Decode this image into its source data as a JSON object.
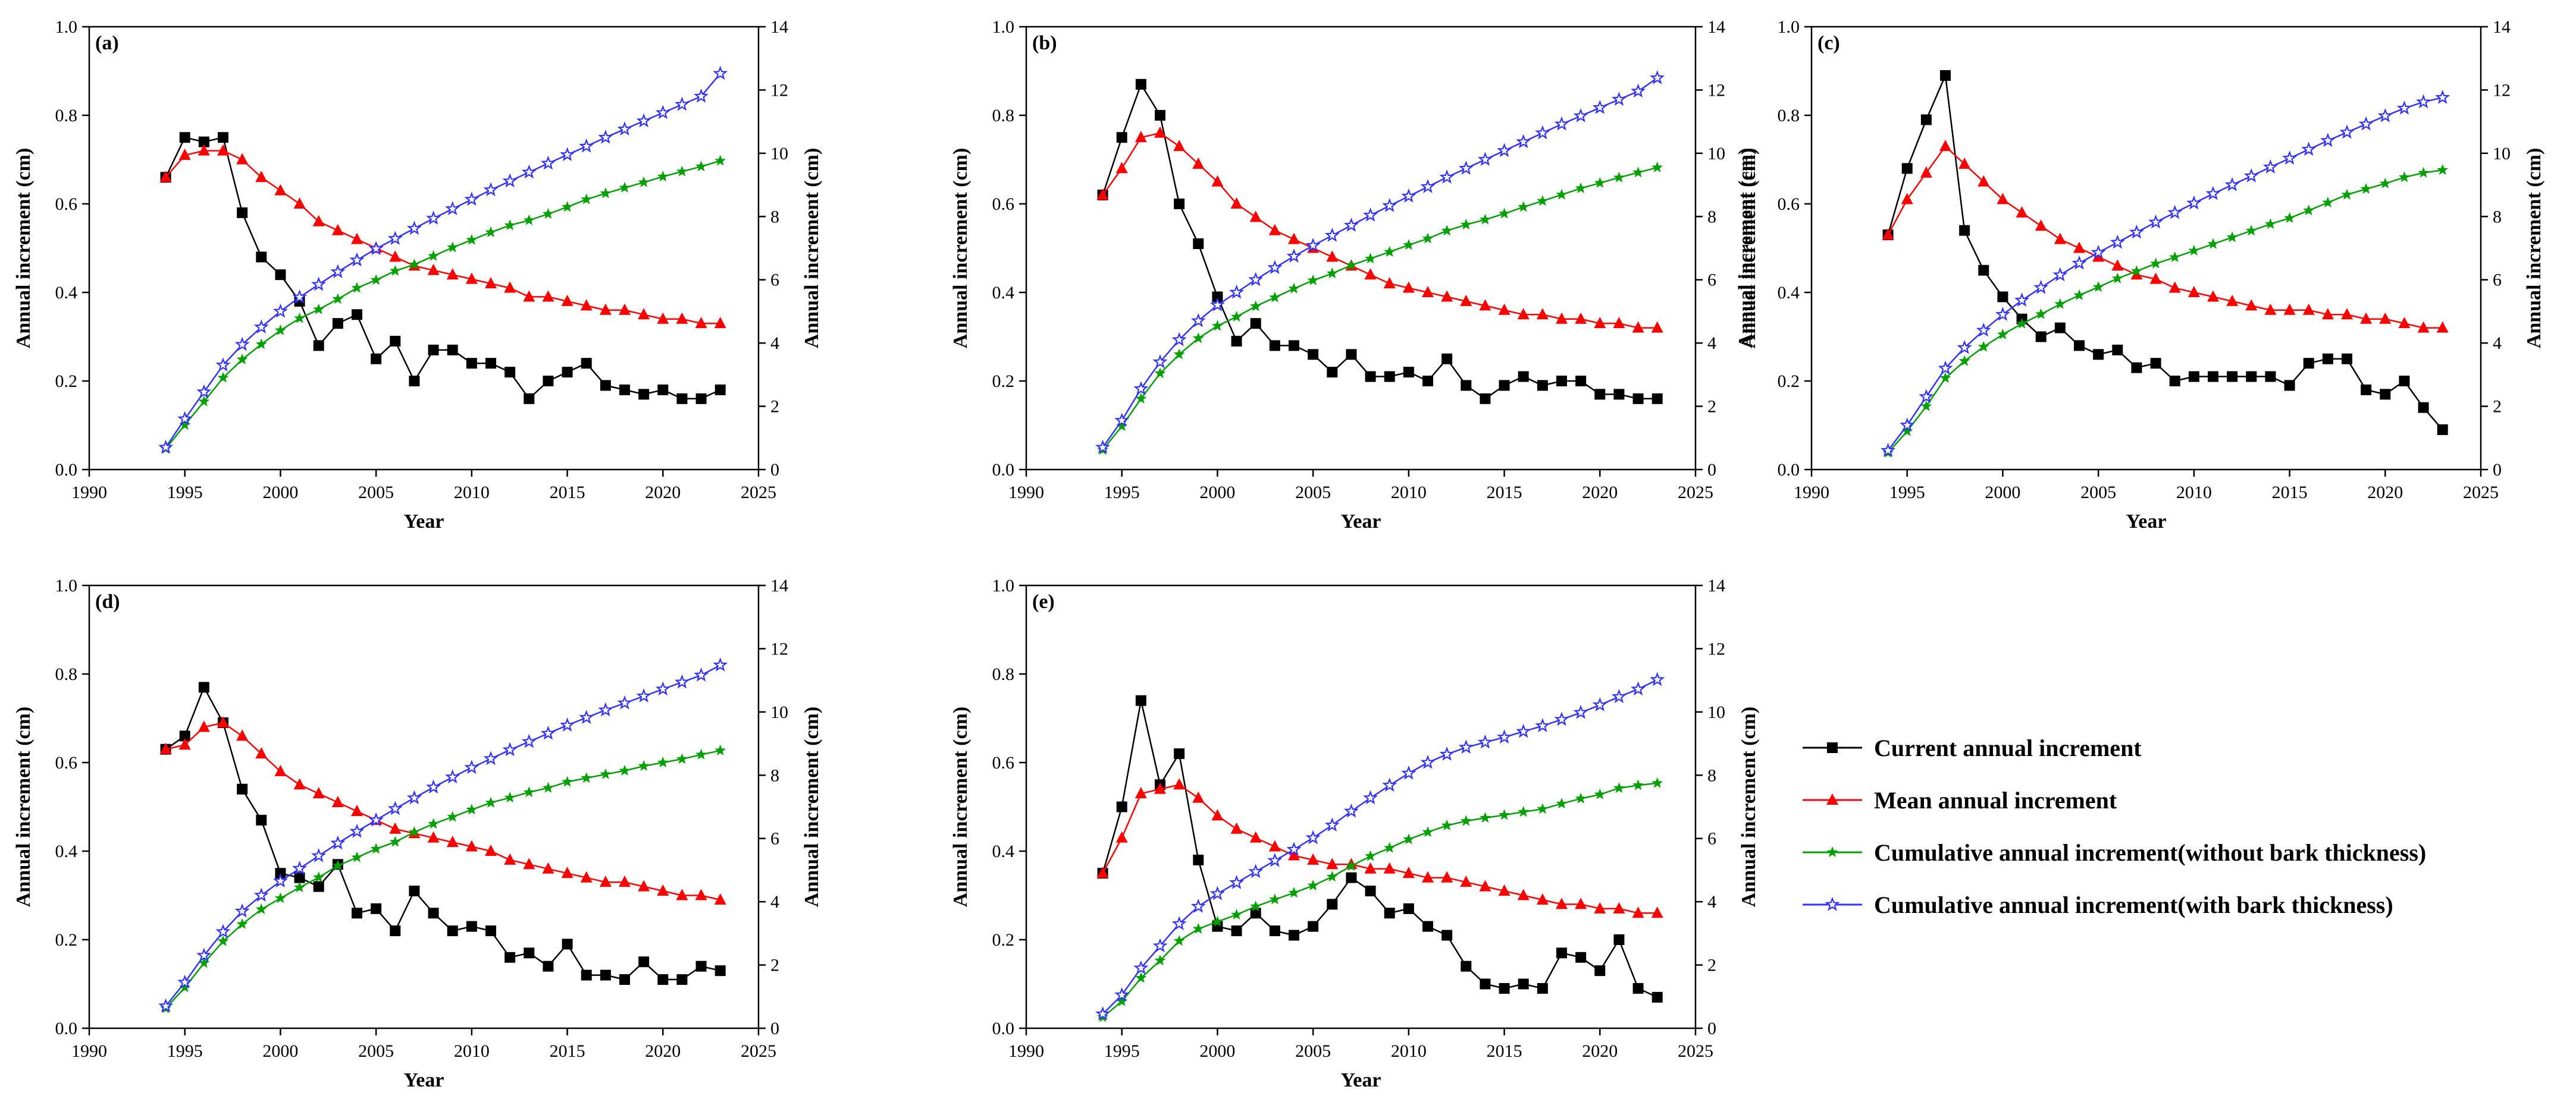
{
  "figure": {
    "legend": [
      {
        "name": "Current annual increment",
        "color": "#000000",
        "marker": "square",
        "axis": "left"
      },
      {
        "name": "Mean annual increment",
        "color": "#ff0000",
        "marker": "triangle",
        "axis": "left"
      },
      {
        "name": "Cumulative annual increment(without bark thickness)",
        "color": "#00a000",
        "marker": "star",
        "axis": "right"
      },
      {
        "name": "Cumulative annual increment(with bark thickness)",
        "color": "#3333ff",
        "marker": "star-open",
        "axis": "right"
      }
    ]
  },
  "chart_data": [
    {
      "type": "line",
      "label": "(a)",
      "xlabel": "Year",
      "ylabel": "Annual increment (cm)",
      "y2label": "Annual increment (cm)",
      "xlim": [
        1990,
        2025
      ],
      "ylim": [
        0,
        1.0
      ],
      "y2lim": [
        0,
        14
      ],
      "xticks": [
        1990,
        1995,
        2000,
        2005,
        2010,
        2015,
        2020,
        2025
      ],
      "yticks": [
        0.0,
        0.2,
        0.4,
        0.6,
        0.8,
        1.0
      ],
      "y2ticks": [
        0,
        2,
        4,
        6,
        8,
        10,
        12,
        14
      ],
      "x": [
        1994,
        1995,
        1996,
        1997,
        1998,
        1999,
        2000,
        2001,
        2002,
        2003,
        2004,
        2005,
        2006,
        2007,
        2008,
        2009,
        2010,
        2011,
        2012,
        2013,
        2014,
        2015,
        2016,
        2017,
        2018,
        2019,
        2020,
        2021,
        2022,
        2023
      ],
      "series": [
        {
          "name": "Current annual increment",
          "axis": "left",
          "values": [
            0.66,
            0.75,
            0.74,
            0.75,
            0.58,
            0.48,
            0.44,
            0.38,
            0.28,
            0.33,
            0.35,
            0.25,
            0.29,
            0.2,
            0.27,
            0.27,
            0.24,
            0.24,
            0.22,
            0.16,
            0.2,
            0.22,
            0.24,
            0.19,
            0.18,
            0.17,
            0.18,
            0.16,
            0.16,
            0.18
          ]
        },
        {
          "name": "Mean annual increment",
          "axis": "left",
          "values": [
            0.66,
            0.71,
            0.72,
            0.72,
            0.7,
            0.66,
            0.63,
            0.6,
            0.56,
            0.54,
            0.52,
            0.5,
            0.48,
            0.46,
            0.45,
            0.44,
            0.43,
            0.42,
            0.41,
            0.39,
            0.39,
            0.38,
            0.37,
            0.36,
            0.36,
            0.35,
            0.34,
            0.34,
            0.33,
            0.33
          ]
        },
        {
          "name": "Cumulative annual increment(without bark thickness)",
          "axis": "right",
          "values": [
            0.66,
            1.41,
            2.15,
            2.9,
            3.48,
            3.96,
            4.4,
            4.78,
            5.06,
            5.39,
            5.74,
            5.99,
            6.28,
            6.48,
            6.75,
            7.02,
            7.26,
            7.5,
            7.72,
            7.88,
            8.08,
            8.3,
            8.54,
            8.73,
            8.91,
            9.08,
            9.26,
            9.42,
            9.58,
            9.76
          ]
        },
        {
          "name": "Cumulative annual increment(with bark thickness)",
          "axis": "right",
          "values": [
            0.7,
            1.6,
            2.45,
            3.3,
            3.95,
            4.5,
            5.0,
            5.45,
            5.85,
            6.25,
            6.62,
            6.98,
            7.3,
            7.62,
            7.94,
            8.24,
            8.54,
            8.84,
            9.12,
            9.4,
            9.68,
            9.95,
            10.22,
            10.5,
            10.76,
            11.02,
            11.28,
            11.54,
            11.8,
            12.52
          ]
        }
      ]
    },
    {
      "type": "line",
      "label": "(b)",
      "xlabel": "Year",
      "ylabel": "Annual increment (cm)",
      "y2label": "Annual increment (cm)",
      "xlim": [
        1990,
        2025
      ],
      "ylim": [
        0,
        1.0
      ],
      "y2lim": [
        0,
        14
      ],
      "xticks": [
        1990,
        1995,
        2000,
        2005,
        2010,
        2015,
        2020,
        2025
      ],
      "yticks": [
        0.0,
        0.2,
        0.4,
        0.6,
        0.8,
        1.0
      ],
      "y2ticks": [
        0,
        2,
        4,
        6,
        8,
        10,
        12,
        14
      ],
      "x": [
        1994,
        1995,
        1996,
        1997,
        1998,
        1999,
        2000,
        2001,
        2002,
        2003,
        2004,
        2005,
        2006,
        2007,
        2008,
        2009,
        2010,
        2011,
        2012,
        2013,
        2014,
        2015,
        2016,
        2017,
        2018,
        2019,
        2020,
        2021,
        2022,
        2023
      ],
      "series": [
        {
          "name": "Current annual increment",
          "axis": "left",
          "values": [
            0.62,
            0.75,
            0.87,
            0.8,
            0.6,
            0.51,
            0.39,
            0.29,
            0.33,
            0.28,
            0.28,
            0.26,
            0.22,
            0.26,
            0.21,
            0.21,
            0.22,
            0.2,
            0.25,
            0.19,
            0.16,
            0.19,
            0.21,
            0.19,
            0.2,
            0.2,
            0.17,
            0.17,
            0.16,
            0.16
          ]
        },
        {
          "name": "Mean annual increment",
          "axis": "left",
          "values": [
            0.62,
            0.68,
            0.75,
            0.76,
            0.73,
            0.69,
            0.65,
            0.6,
            0.57,
            0.54,
            0.52,
            0.5,
            0.48,
            0.46,
            0.44,
            0.42,
            0.41,
            0.4,
            0.39,
            0.38,
            0.37,
            0.36,
            0.35,
            0.35,
            0.34,
            0.34,
            0.33,
            0.33,
            0.32,
            0.32
          ]
        },
        {
          "name": "Cumulative annual increment(without bark thickness)",
          "axis": "right",
          "values": [
            0.62,
            1.37,
            2.24,
            3.04,
            3.64,
            4.15,
            4.54,
            4.83,
            5.16,
            5.44,
            5.72,
            5.98,
            6.2,
            6.46,
            6.67,
            6.88,
            7.1,
            7.3,
            7.55,
            7.74,
            7.9,
            8.09,
            8.3,
            8.49,
            8.69,
            8.89,
            9.06,
            9.23,
            9.39,
            9.55
          ]
        },
        {
          "name": "Cumulative annual increment(with bark thickness)",
          "axis": "right",
          "values": [
            0.7,
            1.55,
            2.55,
            3.4,
            4.1,
            4.7,
            5.2,
            5.6,
            6.0,
            6.38,
            6.74,
            7.08,
            7.4,
            7.72,
            8.04,
            8.34,
            8.64,
            8.94,
            9.24,
            9.52,
            9.8,
            10.08,
            10.36,
            10.64,
            10.92,
            11.18,
            11.44,
            11.7,
            11.96,
            12.38
          ]
        }
      ]
    },
    {
      "type": "line",
      "label": "(c)",
      "xlabel": "Year",
      "ylabel": "Annual increment (cm)",
      "y2label": "Annual increment (cm)",
      "xlim": [
        1990,
        2025
      ],
      "ylim": [
        0,
        1.0
      ],
      "y2lim": [
        0,
        14
      ],
      "xticks": [
        1990,
        1995,
        2000,
        2005,
        2010,
        2015,
        2020,
        2025
      ],
      "yticks": [
        0.0,
        0.2,
        0.4,
        0.6,
        0.8,
        1.0
      ],
      "y2ticks": [
        0,
        2,
        4,
        6,
        8,
        10,
        12,
        14
      ],
      "x": [
        1994,
        1995,
        1996,
        1997,
        1998,
        1999,
        2000,
        2001,
        2002,
        2003,
        2004,
        2005,
        2006,
        2007,
        2008,
        2009,
        2010,
        2011,
        2012,
        2013,
        2014,
        2015,
        2016,
        2017,
        2018,
        2019,
        2020,
        2021,
        2022,
        2023
      ],
      "series": [
        {
          "name": "Current annual increment",
          "axis": "left",
          "values": [
            0.53,
            0.68,
            0.79,
            0.89,
            0.54,
            0.45,
            0.39,
            0.34,
            0.3,
            0.32,
            0.28,
            0.26,
            0.27,
            0.23,
            0.24,
            0.2,
            0.21,
            0.21,
            0.21,
            0.21,
            0.21,
            0.19,
            0.24,
            0.25,
            0.25,
            0.18,
            0.17,
            0.2,
            0.14,
            0.09
          ]
        },
        {
          "name": "Mean annual increment",
          "axis": "left",
          "values": [
            0.53,
            0.61,
            0.67,
            0.73,
            0.69,
            0.65,
            0.61,
            0.58,
            0.55,
            0.52,
            0.5,
            0.48,
            0.46,
            0.44,
            0.43,
            0.41,
            0.4,
            0.39,
            0.38,
            0.37,
            0.36,
            0.36,
            0.36,
            0.35,
            0.35,
            0.34,
            0.34,
            0.33,
            0.32,
            0.32
          ]
        },
        {
          "name": "Cumulative annual increment(without bark thickness)",
          "axis": "right",
          "values": [
            0.53,
            1.21,
            2.0,
            2.89,
            3.43,
            3.88,
            4.27,
            4.61,
            4.91,
            5.23,
            5.51,
            5.77,
            6.04,
            6.27,
            6.51,
            6.71,
            6.92,
            7.13,
            7.34,
            7.55,
            7.76,
            7.95,
            8.19,
            8.44,
            8.69,
            8.87,
            9.04,
            9.24,
            9.38,
            9.47
          ]
        },
        {
          "name": "Cumulative annual increment(with bark thickness)",
          "axis": "right",
          "values": [
            0.6,
            1.4,
            2.3,
            3.2,
            3.85,
            4.4,
            4.9,
            5.35,
            5.75,
            6.15,
            6.52,
            6.86,
            7.18,
            7.5,
            7.82,
            8.12,
            8.42,
            8.72,
            9.0,
            9.28,
            9.56,
            9.84,
            10.12,
            10.4,
            10.66,
            10.92,
            11.18,
            11.42,
            11.62,
            11.76
          ]
        }
      ]
    },
    {
      "type": "line",
      "label": "(d)",
      "xlabel": "Year",
      "ylabel": "Annual increment (cm)",
      "y2label": "Annual increment (cm)",
      "xlim": [
        1990,
        2025
      ],
      "ylim": [
        0,
        1.0
      ],
      "y2lim": [
        0,
        14
      ],
      "xticks": [
        1990,
        1995,
        2000,
        2005,
        2010,
        2015,
        2020,
        2025
      ],
      "yticks": [
        0.0,
        0.2,
        0.4,
        0.6,
        0.8,
        1.0
      ],
      "y2ticks": [
        0,
        2,
        4,
        6,
        8,
        10,
        12,
        14
      ],
      "x": [
        1994,
        1995,
        1996,
        1997,
        1998,
        1999,
        2000,
        2001,
        2002,
        2003,
        2004,
        2005,
        2006,
        2007,
        2008,
        2009,
        2010,
        2011,
        2012,
        2013,
        2014,
        2015,
        2016,
        2017,
        2018,
        2019,
        2020,
        2021,
        2022,
        2023
      ],
      "series": [
        {
          "name": "Current annual increment",
          "axis": "left",
          "values": [
            0.63,
            0.66,
            0.77,
            0.69,
            0.54,
            0.47,
            0.35,
            0.34,
            0.32,
            0.37,
            0.26,
            0.27,
            0.22,
            0.31,
            0.26,
            0.22,
            0.23,
            0.22,
            0.16,
            0.17,
            0.14,
            0.19,
            0.12,
            0.12,
            0.11,
            0.15,
            0.11,
            0.11,
            0.14,
            0.13
          ]
        },
        {
          "name": "Mean annual increment",
          "axis": "left",
          "values": [
            0.63,
            0.64,
            0.68,
            0.69,
            0.66,
            0.62,
            0.58,
            0.55,
            0.53,
            0.51,
            0.49,
            0.47,
            0.45,
            0.44,
            0.43,
            0.42,
            0.41,
            0.4,
            0.38,
            0.37,
            0.36,
            0.35,
            0.34,
            0.33,
            0.33,
            0.32,
            0.31,
            0.3,
            0.3,
            0.29
          ]
        },
        {
          "name": "Cumulative annual increment(without bark thickness)",
          "axis": "right",
          "values": [
            0.63,
            1.29,
            2.06,
            2.75,
            3.29,
            3.76,
            4.11,
            4.45,
            4.77,
            5.14,
            5.4,
            5.67,
            5.89,
            6.2,
            6.46,
            6.68,
            6.91,
            7.13,
            7.29,
            7.46,
            7.6,
            7.79,
            7.91,
            8.03,
            8.14,
            8.29,
            8.4,
            8.51,
            8.65,
            8.78
          ]
        },
        {
          "name": "Cumulative annual increment(with bark thickness)",
          "axis": "right",
          "values": [
            0.7,
            1.45,
            2.3,
            3.05,
            3.7,
            4.2,
            4.65,
            5.05,
            5.45,
            5.85,
            6.22,
            6.58,
            6.94,
            7.28,
            7.62,
            7.94,
            8.24,
            8.52,
            8.8,
            9.06,
            9.32,
            9.58,
            9.82,
            10.06,
            10.28,
            10.5,
            10.72,
            10.94,
            11.16,
            11.48
          ]
        }
      ]
    },
    {
      "type": "line",
      "label": "(e)",
      "xlabel": "Year",
      "ylabel": "Annual increment (cm)",
      "y2label": "Annual increment (cm)",
      "xlim": [
        1990,
        2025
      ],
      "ylim": [
        0,
        1.0
      ],
      "y2lim": [
        0,
        14
      ],
      "xticks": [
        1990,
        1995,
        2000,
        2005,
        2010,
        2015,
        2020,
        2025
      ],
      "yticks": [
        0.0,
        0.2,
        0.4,
        0.6,
        0.8,
        1.0
      ],
      "y2ticks": [
        0,
        2,
        4,
        6,
        8,
        10,
        12,
        14
      ],
      "x": [
        1994,
        1995,
        1996,
        1997,
        1998,
        1999,
        2000,
        2001,
        2002,
        2003,
        2004,
        2005,
        2006,
        2007,
        2008,
        2009,
        2010,
        2011,
        2012,
        2013,
        2014,
        2015,
        2016,
        2017,
        2018,
        2019,
        2020,
        2021,
        2022,
        2023
      ],
      "series": [
        {
          "name": "Current annual increment",
          "axis": "left",
          "values": [
            0.35,
            0.5,
            0.74,
            0.55,
            0.62,
            0.38,
            0.23,
            0.22,
            0.26,
            0.22,
            0.21,
            0.23,
            0.28,
            0.34,
            0.31,
            0.26,
            0.27,
            0.23,
            0.21,
            0.14,
            0.1,
            0.09,
            0.1,
            0.09,
            0.17,
            0.16,
            0.13,
            0.2,
            0.09,
            0.07
          ]
        },
        {
          "name": "Mean annual increment",
          "axis": "left",
          "values": [
            0.35,
            0.43,
            0.53,
            0.54,
            0.55,
            0.52,
            0.48,
            0.45,
            0.43,
            0.41,
            0.39,
            0.38,
            0.37,
            0.37,
            0.36,
            0.36,
            0.35,
            0.34,
            0.34,
            0.33,
            0.32,
            0.31,
            0.3,
            0.29,
            0.28,
            0.28,
            0.27,
            0.27,
            0.26,
            0.26
          ]
        },
        {
          "name": "Cumulative annual increment(without bark thickness)",
          "axis": "right",
          "values": [
            0.35,
            0.85,
            1.59,
            2.14,
            2.76,
            3.14,
            3.37,
            3.59,
            3.85,
            4.07,
            4.28,
            4.51,
            4.79,
            5.13,
            5.44,
            5.7,
            5.97,
            6.2,
            6.41,
            6.55,
            6.65,
            6.74,
            6.84,
            6.93,
            7.1,
            7.26,
            7.39,
            7.59,
            7.68,
            7.75
          ]
        },
        {
          "name": "Cumulative annual increment(with bark thickness)",
          "axis": "right",
          "values": [
            0.45,
            1.05,
            1.9,
            2.6,
            3.3,
            3.85,
            4.25,
            4.6,
            4.95,
            5.3,
            5.65,
            6.02,
            6.42,
            6.86,
            7.28,
            7.68,
            8.06,
            8.4,
            8.66,
            8.88,
            9.04,
            9.2,
            9.38,
            9.56,
            9.76,
            9.98,
            10.22,
            10.48,
            10.72,
            11.02
          ]
        }
      ]
    }
  ]
}
